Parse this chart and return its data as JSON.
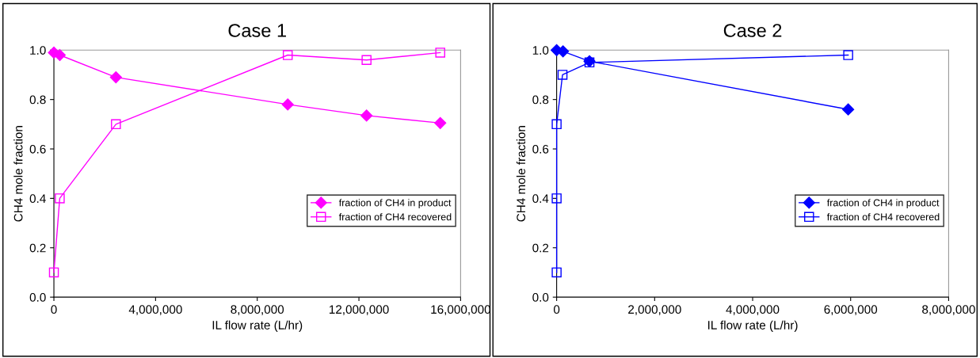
{
  "chart_data": [
    {
      "type": "line",
      "title": "Case 1",
      "xlabel": "IL flow rate (L/hr)",
      "ylabel": "CH4 mole fraction",
      "xlim": [
        0,
        16000000
      ],
      "xticks": [
        0,
        {
          "value": 4000000,
          "label": "4,000,000"
        },
        {
          "value": 8000000,
          "label": "8,000,000"
        },
        {
          "value": 12000000,
          "label": "12,000,000"
        },
        {
          "value": 16000000,
          "label": "16,000,000"
        }
      ],
      "ylim": [
        0,
        1
      ],
      "yticks": [
        {
          "value": 0,
          "label": "0.0"
        },
        {
          "value": 0.2,
          "label": "0.2"
        },
        {
          "value": 0.4,
          "label": "0.4"
        },
        {
          "value": 0.6,
          "label": "0.6"
        },
        {
          "value": 0.8,
          "label": "0.8"
        },
        {
          "value": 1,
          "label": "1.0"
        }
      ],
      "grid": false,
      "legend": "right",
      "series": [
        {
          "name": "fraction of CH4 in product",
          "color": "#ff00ff",
          "marker": "diamond",
          "x": [
            0,
            230000,
            2440000,
            9200000,
            12300000,
            15200000
          ],
          "values": [
            0.99,
            0.98,
            0.89,
            0.78,
            0.735,
            0.705
          ]
        },
        {
          "name": "fraction of CH4 recovered",
          "color": "#ff00ff",
          "marker": "square",
          "x": [
            0,
            230000,
            2440000,
            9200000,
            12300000,
            15200000
          ],
          "values": [
            0.1,
            0.4,
            0.7,
            0.98,
            0.96,
            0.99
          ]
        }
      ]
    },
    {
      "type": "line",
      "title": "Case 2",
      "xlabel": "IL flow rate (L/hr)",
      "ylabel": "CH4 mole fraction",
      "xlim": [
        0,
        8000000
      ],
      "xticks": [
        0,
        {
          "value": 2000000,
          "label": "2,000,000"
        },
        {
          "value": 4000000,
          "label": "4,000,000"
        },
        {
          "value": 6000000,
          "label": "6,000,000"
        },
        {
          "value": 8000000,
          "label": "8,000,000"
        }
      ],
      "ylim": [
        0,
        1
      ],
      "yticks": [
        {
          "value": 0,
          "label": "0.0"
        },
        {
          "value": 0.2,
          "label": "0.2"
        },
        {
          "value": 0.4,
          "label": "0.4"
        },
        {
          "value": 0.6,
          "label": "0.6"
        },
        {
          "value": 0.8,
          "label": "0.8"
        },
        {
          "value": 1,
          "label": "1.0"
        }
      ],
      "grid": false,
      "legend": "right",
      "series": [
        {
          "name": "fraction of CH4 in product",
          "color": "#0000ff",
          "marker": "diamond",
          "x": [
            0,
            130000,
            670000,
            5950000
          ],
          "values": [
            1.0,
            0.995,
            0.955,
            0.76
          ]
        },
        {
          "name": "fraction of CH4 recovered",
          "color": "#0000ff",
          "marker": "square",
          "x": [
            0,
            0,
            0,
            120000,
            670000,
            5950000
          ],
          "values": [
            0.1,
            0.4,
            0.7,
            0.9,
            0.95,
            0.98
          ]
        }
      ]
    }
  ]
}
